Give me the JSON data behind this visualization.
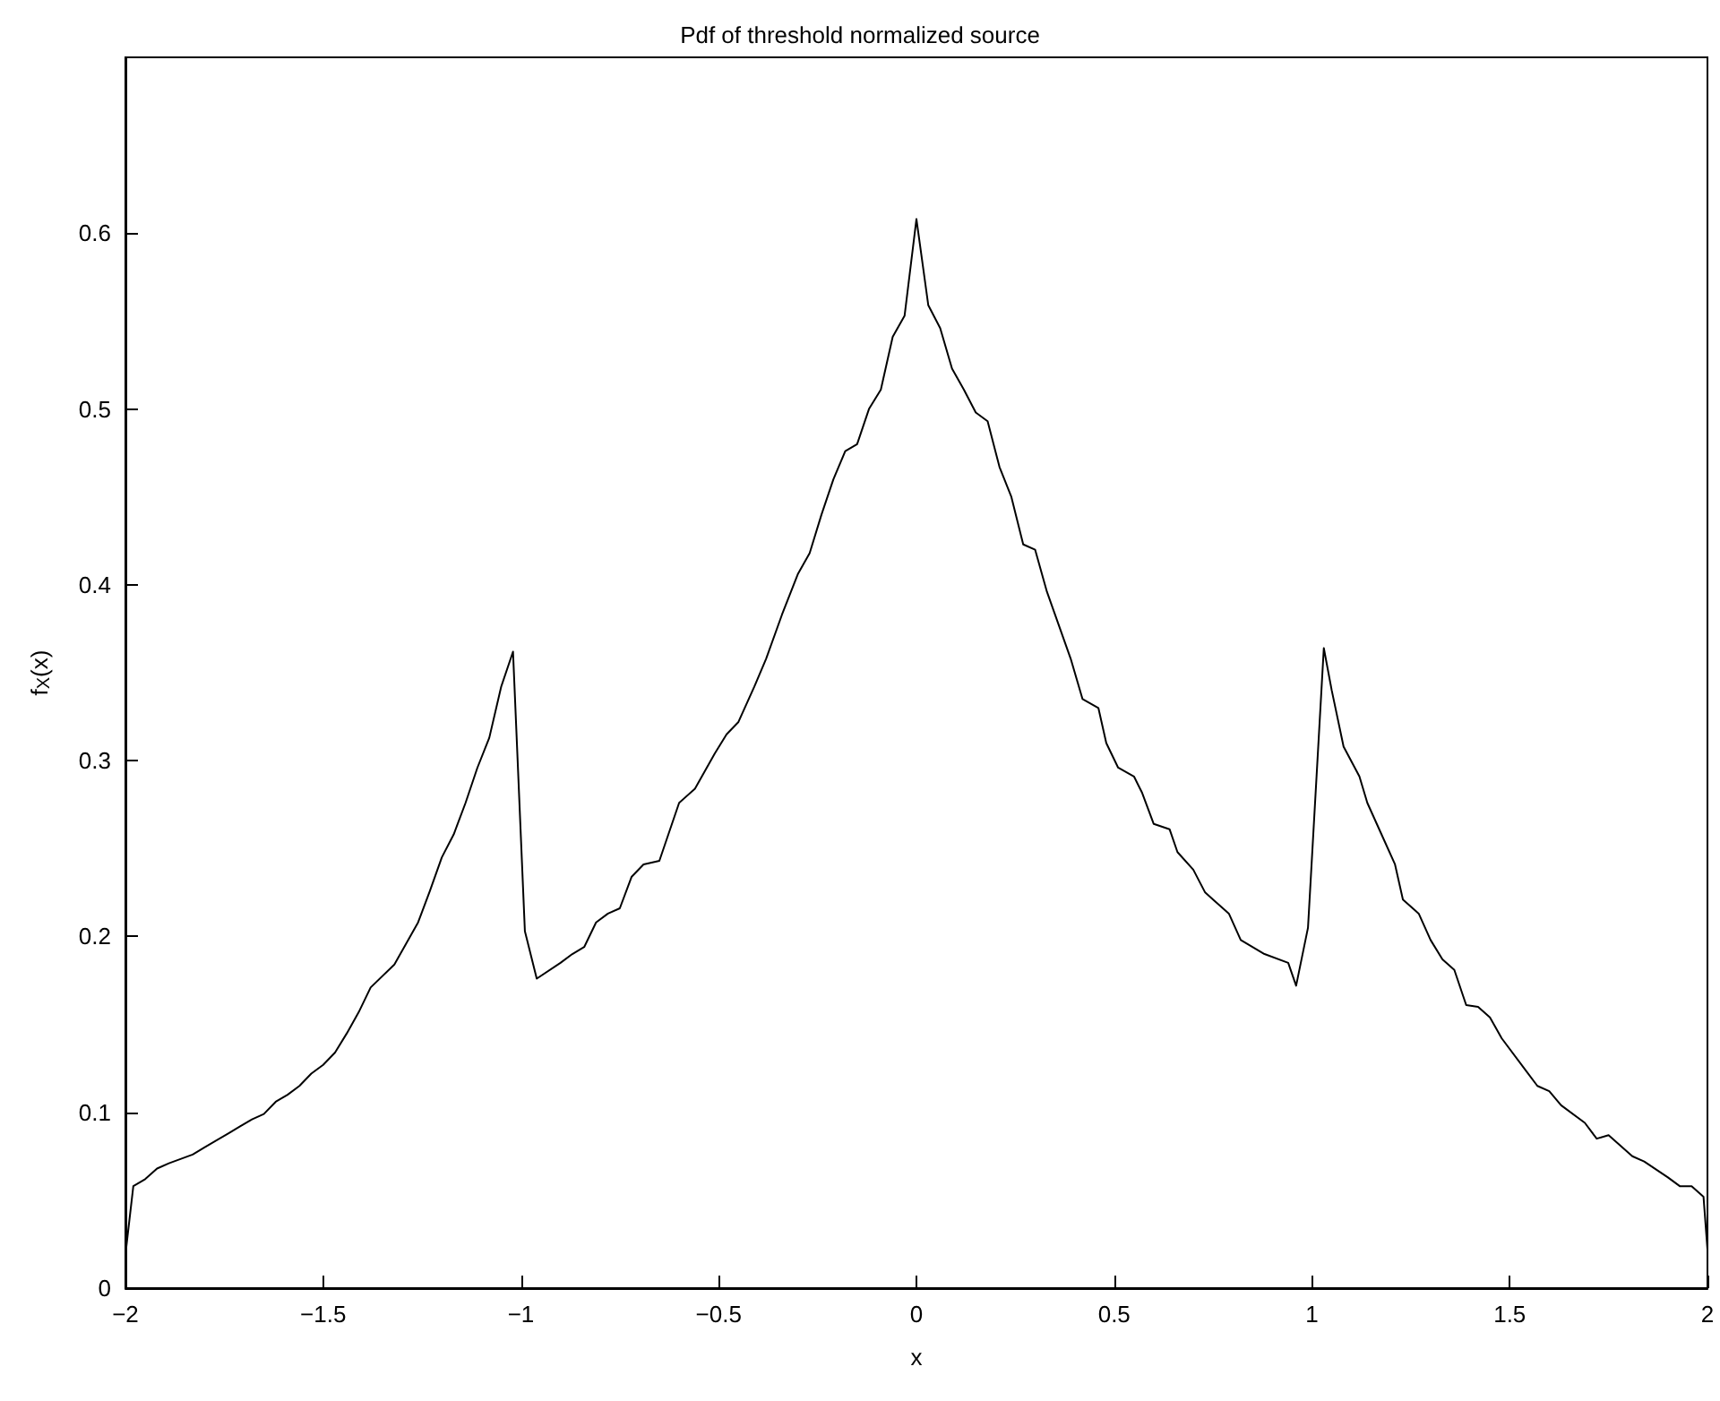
{
  "chart_data": {
    "type": "line",
    "title": "Pdf of threshold normalized source",
    "xlabel": "x",
    "ylabel": "f$_{X}$(x)",
    "x": [
      -2.0,
      -1.98,
      -1.95,
      -1.92,
      -1.89,
      -1.83,
      -1.8,
      -1.74,
      -1.71,
      -1.68,
      -1.65,
      -1.62,
      -1.59,
      -1.56,
      -1.53,
      -1.5,
      -1.47,
      -1.44,
      -1.41,
      -1.38,
      -1.32,
      -1.29,
      -1.26,
      -1.23,
      -1.2,
      -1.17,
      -1.14,
      -1.11,
      -1.08,
      -1.05,
      -1.02,
      -0.99,
      -0.96,
      -0.9,
      -0.87,
      -0.84,
      -0.81,
      -0.78,
      -0.75,
      -0.72,
      -0.69,
      -0.65,
      -0.6,
      -0.56,
      -0.51,
      -0.48,
      -0.45,
      -0.41,
      -0.38,
      -0.34,
      -0.3,
      -0.27,
      -0.24,
      -0.21,
      -0.18,
      -0.15,
      -0.12,
      -0.09,
      -0.06,
      -0.03,
      0.0,
      0.03,
      0.06,
      0.09,
      0.12,
      0.15,
      0.18,
      0.21,
      0.24,
      0.27,
      0.3,
      0.33,
      0.39,
      0.42,
      0.46,
      0.48,
      0.51,
      0.55,
      0.57,
      0.6,
      0.64,
      0.66,
      0.7,
      0.73,
      0.75,
      0.79,
      0.82,
      0.88,
      0.94,
      0.96,
      0.99,
      1.03,
      1.05,
      1.08,
      1.12,
      1.14,
      1.18,
      1.21,
      1.23,
      1.27,
      1.3,
      1.33,
      1.36,
      1.39,
      1.42,
      1.45,
      1.48,
      1.54,
      1.57,
      1.6,
      1.63,
      1.69,
      1.72,
      1.75,
      1.81,
      1.84,
      1.9,
      1.93,
      1.96,
      1.99,
      2.0
    ],
    "series": [
      {
        "color": "#000000",
        "values": [
          0.019,
          0.058,
          0.062,
          0.068,
          0.071,
          0.076,
          0.08,
          0.088,
          0.092,
          0.096,
          0.099,
          0.106,
          0.11,
          0.115,
          0.122,
          0.127,
          0.134,
          0.145,
          0.157,
          0.171,
          0.184,
          0.196,
          0.208,
          0.226,
          0.245,
          0.258,
          0.276,
          0.296,
          0.313,
          0.342,
          0.362,
          0.203,
          0.176,
          0.185,
          0.19,
          0.194,
          0.208,
          0.213,
          0.216,
          0.234,
          0.241,
          0.243,
          0.276,
          0.284,
          0.304,
          0.315,
          0.322,
          0.342,
          0.358,
          0.383,
          0.406,
          0.418,
          0.44,
          0.46,
          0.476,
          0.48,
          0.5,
          0.511,
          0.541,
          0.553,
          0.608,
          0.559,
          0.546,
          0.523,
          0.511,
          0.498,
          0.493,
          0.467,
          0.45,
          0.423,
          0.42,
          0.396,
          0.358,
          0.335,
          0.33,
          0.31,
          0.296,
          0.291,
          0.282,
          0.264,
          0.261,
          0.248,
          0.238,
          0.225,
          0.221,
          0.213,
          0.198,
          0.19,
          0.185,
          0.172,
          0.205,
          0.364,
          0.34,
          0.308,
          0.291,
          0.276,
          0.256,
          0.241,
          0.221,
          0.213,
          0.198,
          0.187,
          0.181,
          0.161,
          0.16,
          0.154,
          0.142,
          0.124,
          0.115,
          0.112,
          0.104,
          0.094,
          0.085,
          0.087,
          0.075,
          0.072,
          0.063,
          0.058,
          0.058,
          0.052,
          0.022
        ]
      }
    ],
    "xlim": [
      -2,
      2
    ],
    "xticks": [
      {
        "value": -2,
        "label": "−2"
      },
      {
        "value": -1.5,
        "label": "−1.5"
      },
      {
        "value": -1,
        "label": "−1"
      },
      {
        "value": -0.5,
        "label": "−0.5"
      },
      0,
      0.5,
      1,
      1.5,
      2
    ],
    "ylim": [
      0,
      0.7
    ],
    "yticks": [
      0,
      0.1,
      0.2,
      0.3,
      0.4,
      0.5,
      0.6
    ],
    "grid": false,
    "marker": "none",
    "line_style": "solid"
  }
}
